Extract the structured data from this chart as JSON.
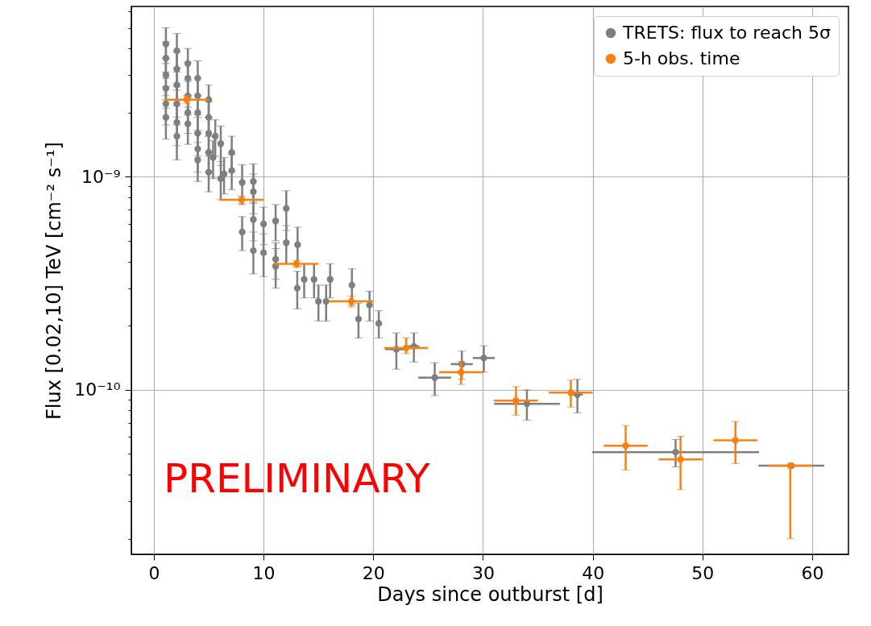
{
  "chart_data": {
    "type": "scatter",
    "xlabel": "Days since outburst [d]",
    "ylabel": "Flux [0.02,10] TeV [cm⁻² s⁻¹]",
    "log": "y",
    "grid": true,
    "legend": "top right",
    "marker": "circle",
    "xlim": [
      -2.05,
      63.3
    ],
    "xticks": [
      0,
      10,
      20,
      30,
      40,
      50,
      60
    ],
    "ylim": [
      1.69e-11,
      6.3e-09
    ],
    "yticks": [
      {
        "value": 2e-11,
        "label": null
      },
      {
        "value": 3e-11,
        "label": null
      },
      {
        "value": 4e-11,
        "label": null
      },
      {
        "value": 5e-11,
        "label": null
      },
      {
        "value": 6e-11,
        "label": null
      },
      {
        "value": 7e-11,
        "label": null
      },
      {
        "value": 8e-11,
        "label": null
      },
      {
        "value": 9e-11,
        "label": null
      },
      {
        "value": 1e-10,
        "label": "10⁻¹⁰"
      },
      {
        "value": 2e-10,
        "label": null
      },
      {
        "value": 3e-10,
        "label": null
      },
      {
        "value": 4e-10,
        "label": null
      },
      {
        "value": 5e-10,
        "label": null
      },
      {
        "value": 6e-10,
        "label": null
      },
      {
        "value": 7e-10,
        "label": null
      },
      {
        "value": 8e-10,
        "label": null
      },
      {
        "value": 9e-10,
        "label": null
      },
      {
        "value": 1e-09,
        "label": "10⁻⁹"
      },
      {
        "value": 2e-09,
        "label": null
      },
      {
        "value": 3e-09,
        "label": null
      },
      {
        "value": 4e-09,
        "label": null
      },
      {
        "value": 5e-09,
        "label": null
      },
      {
        "value": 6e-09,
        "label": null
      }
    ],
    "annotations": [
      "PRELIMINARY"
    ],
    "series": [
      {
        "name": "TRETS: flux to reach 5σ",
        "color": "#7f7f7f",
        "x": [
          1.1,
          1.1,
          1.1,
          1.1,
          1.1,
          1.1,
          2.1,
          2.1,
          2.1,
          2.1,
          2.1,
          2.1,
          3.1,
          3.1,
          3.1,
          3.1,
          3.1,
          4.0,
          4.0,
          4.0,
          4.0,
          4.0,
          4.0,
          5.0,
          5.0,
          5.0,
          5.0,
          5.0,
          5.6,
          5.4,
          6.1,
          6.1,
          6.4,
          7.1,
          7.1,
          8.05,
          8.05,
          9.07,
          9.07,
          9.07,
          9.07,
          10.0,
          10.0,
          11.1,
          11.1,
          11.1,
          12.07,
          12.07,
          13.1,
          13.07,
          13.7,
          14.6,
          15.0,
          15.7,
          16.07,
          18.05,
          18.65,
          19.66,
          20.5,
          22.1,
          23.7,
          25.6,
          28.07,
          30.07,
          34.0,
          38.6,
          47.55,
          58.1
        ],
        "values": [
          4.2e-09,
          3.6e-09,
          3e-09,
          2.6e-09,
          2.2e-09,
          1.9e-09,
          3.9e-09,
          3.2e-09,
          2.7e-09,
          2.2e-09,
          1.8e-09,
          1.55e-09,
          3.4e-09,
          2.9e-09,
          2.4e-09,
          2e-09,
          1.77e-09,
          2.9e-09,
          2.4e-09,
          2e-09,
          1.6e-09,
          1.35e-09,
          1.2e-09,
          2.3e-09,
          1.9e-09,
          1.6e-09,
          1.3e-09,
          1.05e-09,
          1.55e-09,
          1.23e-09,
          1.43e-09,
          9.8e-10,
          1.03e-09,
          1.3e-09,
          1.07e-09,
          9.4e-10,
          5.5e-10,
          9.5e-10,
          8.5e-10,
          6.3e-10,
          4.5e-10,
          6e-10,
          4.4e-10,
          6.2e-10,
          4.1e-10,
          3.8e-10,
          7.1e-10,
          4.9e-10,
          4.8e-10,
          3e-10,
          3.3e-10,
          3.3e-10,
          2.6e-10,
          2.6e-10,
          3.3e-10,
          3.1e-10,
          2.15e-10,
          2.5e-10,
          2.05e-10,
          1.55e-10,
          1.6e-10,
          1.14e-10,
          1.32e-10,
          1.41e-10,
          8.6e-11,
          9.5e-11,
          5.1e-11,
          4.4e-11
        ],
        "errors": [
          8e-10,
          7e-10,
          6e-10,
          5e-10,
          4.5e-10,
          4e-10,
          8e-10,
          6.5e-10,
          5.5e-10,
          4.5e-10,
          4e-10,
          3.5e-10,
          6e-10,
          5.5e-10,
          4.5e-10,
          4e-10,
          3.5e-10,
          6e-10,
          5e-10,
          4e-10,
          3.5e-10,
          3e-10,
          2.5e-10,
          4e-10,
          3.5e-10,
          3e-10,
          2.5e-10,
          2e-10,
          3e-10,
          2.5e-10,
          3e-10,
          2e-10,
          2e-10,
          2.5e-10,
          2e-10,
          2e-10,
          1e-10,
          2e-10,
          1.8e-10,
          1.3e-10,
          1e-10,
          1.2e-10,
          1e-10,
          1.2e-10,
          8e-11,
          8e-11,
          1.5e-10,
          1e-10,
          1e-10,
          6e-11,
          6e-11,
          6e-11,
          5e-11,
          5e-11,
          6e-11,
          6e-11,
          4e-11,
          4e-11,
          3e-11,
          3e-11,
          2.5e-11,
          2e-11,
          2e-11,
          2e-11,
          1.4e-11,
          1.7e-11,
          7.5e-12,
          null
        ],
        "xerrors": [
          null,
          null,
          null,
          null,
          null,
          null,
          null,
          null,
          null,
          null,
          null,
          null,
          null,
          null,
          null,
          null,
          null,
          null,
          null,
          null,
          null,
          null,
          null,
          null,
          null,
          null,
          null,
          null,
          null,
          null,
          null,
          null,
          null,
          null,
          null,
          null,
          null,
          null,
          null,
          null,
          null,
          null,
          null,
          null,
          null,
          null,
          null,
          null,
          null,
          null,
          null,
          null,
          null,
          null,
          null,
          null,
          null,
          null,
          null,
          1,
          0.5,
          1.5,
          1,
          1,
          3,
          0.5,
          7.6,
          3
        ]
      },
      {
        "name": "5-h obs. time",
        "color": "#ff7f0e",
        "x": [
          3,
          8,
          13,
          18,
          23,
          28,
          33,
          38,
          43,
          48,
          53,
          58
        ],
        "values": [
          2.3e-09,
          7.8e-10,
          3.9e-10,
          2.6e-10,
          1.57e-10,
          1.21e-10,
          8.9e-11,
          9.7e-11,
          5.46e-11,
          4.71e-11,
          5.8e-11,
          4.4e-11
        ],
        "errors": [
          [
            2.2e-09,
            2.4e-09
          ],
          [
            7.5e-10,
            8.1e-10
          ],
          [
            3.75e-10,
            4.05e-10
          ],
          [
            2.45e-10,
            2.75e-10
          ],
          [
            1.48e-10,
            1.75e-10
          ],
          [
            1.06e-10,
            1.36e-10
          ],
          [
            7.6e-11,
            1.035e-10
          ],
          [
            8.3e-11,
            1.11e-10
          ],
          [
            4.2e-11,
            6.8e-11
          ],
          [
            3.4e-11,
            6.05e-11
          ],
          [
            4.5e-11,
            7.1e-11
          ],
          [
            2e-11,
            4.4e-11
          ]
        ],
        "xerrors": [
          2,
          2,
          2,
          2,
          2,
          2,
          2,
          2,
          2,
          2,
          2,
          2
        ]
      }
    ]
  }
}
